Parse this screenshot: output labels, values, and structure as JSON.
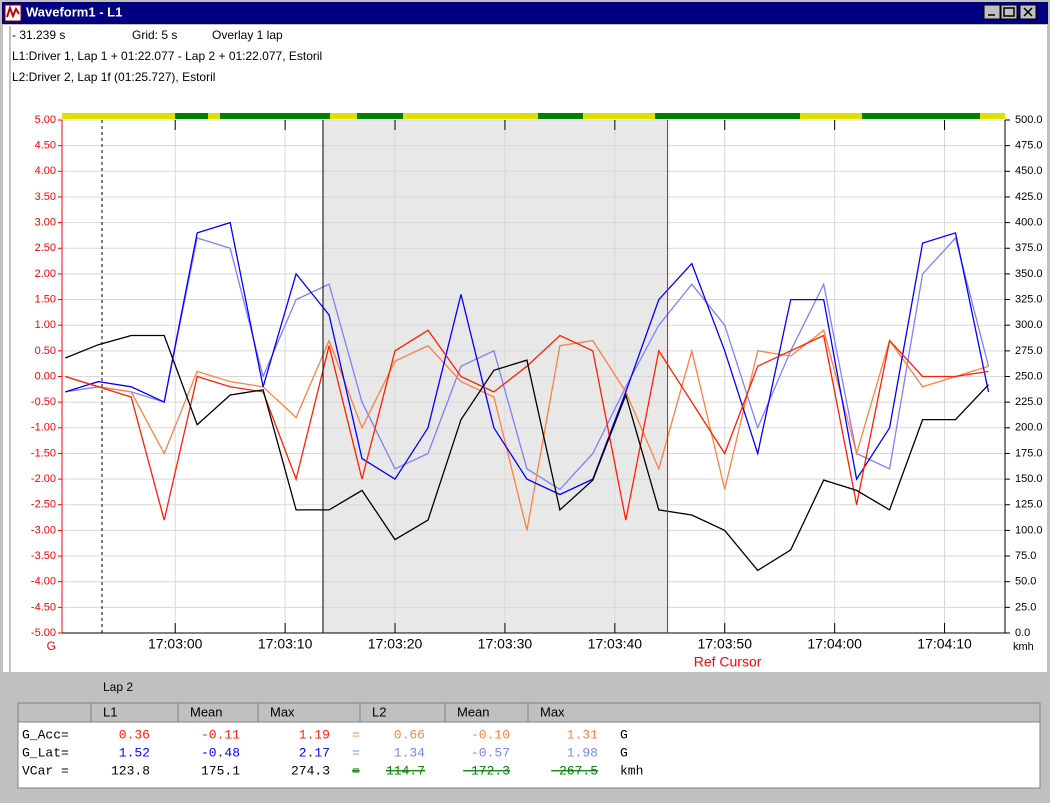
{
  "window": {
    "title": "Waveform1 - L1"
  },
  "header": {
    "cursor": "- 31.239 s",
    "grid": "Grid: 5 s",
    "overlay": "Overlay 1 lap",
    "line1": "L1:Driver 1, Lap 1 + 01:22.077  -  Lap 2 + 01:22.077, Estoril",
    "line2": "L2:Driver 2, Lap 1f (01:25.727), Estoril"
  },
  "chart_data": {
    "type": "line",
    "x": [
      61370,
      61373,
      61376,
      61379,
      61382,
      61385,
      61388,
      61391,
      61394,
      61397,
      61400,
      61403,
      61406,
      61409,
      61412,
      61415,
      61418,
      61421,
      61424,
      61427,
      61430,
      61433,
      61436,
      61439,
      61442,
      61445,
      61448,
      61451,
      61454
    ],
    "xlim": [
      61369.7,
      61455.5
    ],
    "xticks": [
      {
        "value": 61380,
        "label": "17:03:00"
      },
      {
        "value": 61390,
        "label": "17:03:10"
      },
      {
        "value": 61400,
        "label": "17:03:20"
      },
      {
        "value": 61410,
        "label": "17:03:30"
      },
      {
        "value": 61420,
        "label": "17:03:40"
      },
      {
        "value": 61430,
        "label": "17:03:50"
      },
      {
        "value": 61440,
        "label": "17:04:00"
      },
      {
        "value": 61450,
        "label": "17:04:10"
      }
    ],
    "ylim": [
      -5,
      5
    ],
    "yticks": [
      {
        "value": 5,
        "label": "5.00"
      },
      {
        "value": 4.5,
        "label": "4.50"
      },
      {
        "value": 4,
        "label": "4.00"
      },
      {
        "value": 3.5,
        "label": "3.50"
      },
      {
        "value": 3,
        "label": "3.00"
      },
      {
        "value": 2.5,
        "label": "2.50"
      },
      {
        "value": 2,
        "label": "2.00"
      },
      {
        "value": 1.5,
        "label": "1.50"
      },
      {
        "value": 1,
        "label": "1.00"
      },
      {
        "value": 0.5,
        "label": "0.50"
      },
      {
        "value": 0,
        "label": "0.00"
      },
      {
        "value": -0.5,
        "label": "-0.50"
      },
      {
        "value": -1,
        "label": "-1.00"
      },
      {
        "value": -1.5,
        "label": "-1.50"
      },
      {
        "value": -2,
        "label": "-2.00"
      },
      {
        "value": -2.5,
        "label": "-2.50"
      },
      {
        "value": -3,
        "label": "-3.00"
      },
      {
        "value": -3.5,
        "label": "-3.50"
      },
      {
        "value": -4,
        "label": "-4.00"
      },
      {
        "value": -4.5,
        "label": "-4.50"
      },
      {
        "value": -5,
        "label": "-5.00"
      }
    ],
    "y_label": "G",
    "y2lim": [
      0,
      500
    ],
    "y2ticks": [
      {
        "value": 500,
        "label": "500.0"
      },
      {
        "value": 475,
        "label": "475.0"
      },
      {
        "value": 450,
        "label": "450.0"
      },
      {
        "value": 425,
        "label": "425.0"
      },
      {
        "value": 400,
        "label": "400.0"
      },
      {
        "value": 375,
        "label": "375.0"
      },
      {
        "value": 350,
        "label": "350.0"
      },
      {
        "value": 325,
        "label": "325.0"
      },
      {
        "value": 300,
        "label": "300.0"
      },
      {
        "value": 275,
        "label": "275.0"
      },
      {
        "value": 250,
        "label": "250.0"
      },
      {
        "value": 225,
        "label": "225.0"
      },
      {
        "value": 200,
        "label": "200.0"
      },
      {
        "value": 175,
        "label": "175.0"
      },
      {
        "value": 150,
        "label": "150.0"
      },
      {
        "value": 125,
        "label": "125.0"
      },
      {
        "value": 100,
        "label": "100.0"
      },
      {
        "value": 75,
        "label": "75.0"
      },
      {
        "value": 50,
        "label": "50.0"
      },
      {
        "value": 25,
        "label": "25.0"
      },
      {
        "value": 0,
        "label": "0.0"
      }
    ],
    "y2_label": "kmh",
    "grid": true,
    "ref_cursor": {
      "label": "Ref Cursor",
      "x": 61424.8
    },
    "series": [
      {
        "color": "#8080ff",
        "values": [
          -0.3,
          -0.2,
          -0.3,
          -0.5,
          2.7,
          2.5,
          0,
          1.5,
          1.8,
          -0.5,
          -1.8,
          -1.5,
          0.2,
          0.5,
          -1.8,
          -2.2,
          -1.5,
          -0.2,
          1.0,
          1.8,
          1.0,
          -1.0,
          0.5,
          1.8,
          -1.5,
          -1.8,
          2.0,
          2.7,
          0.2
        ]
      },
      {
        "color": "#ff8040",
        "values": [
          0,
          -0.2,
          -0.3,
          -1.5,
          0.1,
          -0.1,
          -0.2,
          -0.8,
          0.7,
          -1.0,
          0.3,
          0.6,
          -0.1,
          -0.4,
          -3.0,
          0.6,
          0.7,
          -0.3,
          -1.8,
          0.5,
          -2.2,
          0.5,
          0.4,
          0.9,
          -1.5,
          0.7,
          -0.2,
          0,
          0.2
        ]
      },
      {
        "color": "#0000ff",
        "values": [
          -0.3,
          -0.1,
          -0.2,
          -0.5,
          2.8,
          3.0,
          -0.2,
          2.0,
          1.2,
          -1.6,
          -2.0,
          -1.0,
          1.6,
          -1.0,
          -2.0,
          -2.3,
          -2.0,
          -0.3,
          1.5,
          2.2,
          0.5,
          -1.5,
          1.5,
          1.5,
          -2.0,
          -1.0,
          2.6,
          2.8,
          -0.3
        ]
      },
      {
        "color": "#ff2000",
        "values": [
          0,
          -0.2,
          -0.4,
          -2.8,
          0,
          -0.2,
          -0.3,
          -2.0,
          0.6,
          -2.0,
          0.5,
          0.9,
          0,
          -0.3,
          0.2,
          0.8,
          0.5,
          -2.8,
          0.5,
          -0.5,
          -1.5,
          0.2,
          0.5,
          0.8,
          -2.5,
          0.7,
          0,
          0,
          0.1
        ]
      },
      {
        "color": "#000000",
        "axis": "y2",
        "values": [
          268,
          281,
          290,
          290,
          203,
          232,
          237,
          120,
          120,
          139,
          91,
          110,
          208,
          256,
          266,
          120,
          149,
          232,
          120,
          115,
          100,
          61,
          81,
          149,
          139,
          120,
          208,
          208,
          242
        ]
      }
    ]
  },
  "table": {
    "lap": "Lap 2",
    "header": [
      "L1",
      "Mean",
      "Max",
      "L2",
      "Mean",
      "Max"
    ],
    "rows": [
      [
        "G_Acc=",
        "0.36",
        "-0.11",
        "1.19",
        "=",
        "0.66",
        "-0.10",
        "1.31",
        "G"
      ],
      [
        "G_Lat=",
        "1.52",
        "-0.48",
        "2.17",
        "=",
        "1.34",
        "-0.57",
        "1.98",
        "G"
      ],
      [
        "VCar =",
        "123.8",
        "175.1",
        "274.3",
        "=",
        "114.7",
        "-172.3",
        "-267.5",
        "kmh"
      ]
    ]
  }
}
